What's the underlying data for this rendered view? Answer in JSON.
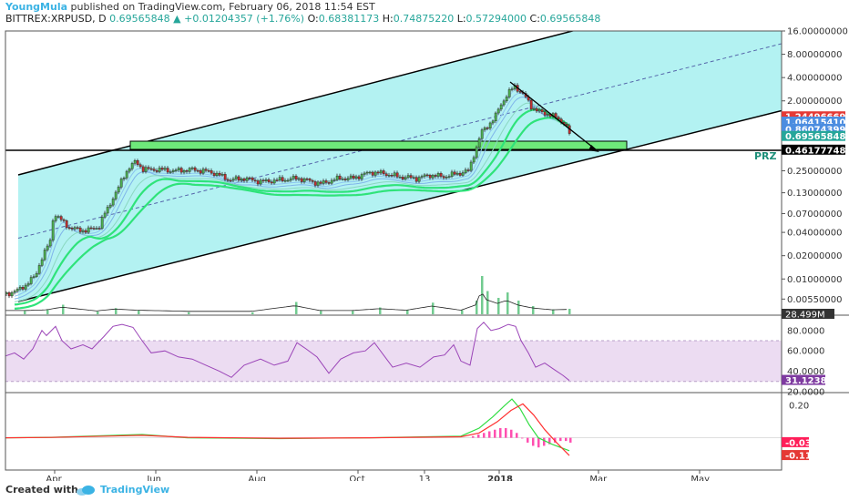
{
  "header": {
    "author": "YoungMula",
    "published_text": "published on TradingView.com, February 06, 2018 11:54 EST",
    "symbol": "BITTREX:XRPUSD, D",
    "last": "0.69565848",
    "change_arrow": "▲",
    "change": "+0.01204357 (+1.76%)",
    "o_label": "O:",
    "o_value": "0.68381173",
    "h_label": "H:",
    "h_value": "0.74875220",
    "l_label": "L:",
    "l_value": "0.57294000",
    "c_label": "C:",
    "c_value": "0.69565848"
  },
  "footer": {
    "created_with": "Created with",
    "brand": "TradingView"
  },
  "colors": {
    "channel_fill": "#a6f0f0",
    "prz_fill": "#6ee87a",
    "ma_green": "#2fe37a",
    "ma_blue": "#4c8de0",
    "up": "#4caf50",
    "down": "#c03030",
    "rsi": "#9b45b8",
    "rsi_band": "#ecdcf2",
    "macd_signal": "#ff3030",
    "macd_line": "#33dd44",
    "hist": "#ff4fb0"
  },
  "chart_data": [
    {
      "type": "candlestick",
      "title": "BITTREX:XRPUSD, D",
      "scale": "log",
      "ylim": [
        0.0035,
        16
      ],
      "x_ticks": [
        "Apr",
        "Jun",
        "Aug",
        "Oct",
        "13",
        "2018",
        "Mar",
        "May"
      ],
      "y_ticks": [
        "16.00000000",
        "8.00000000",
        "4.00000000",
        "2.00000000",
        "0.25000000",
        "0.13000000",
        "0.07000000",
        "0.04000000",
        "0.02000000",
        "0.01000000",
        "0.00550000"
      ],
      "price_labels": [
        {
          "text": "1.24496669",
          "color": "#e53935"
        },
        {
          "text": "1.06415410",
          "color": "#4c8de0"
        },
        {
          "text": "0.86074399",
          "color": "#4c8de0"
        },
        {
          "text": "0.69565848",
          "color": "#26a69a"
        },
        {
          "text": "0.46177748",
          "color": "#000000"
        }
      ],
      "annotation": "PRZ",
      "series": [
        {
          "t": 0,
          "v": 0.0064
        },
        {
          "t": 12,
          "v": 0.0071
        },
        {
          "t": 22,
          "v": 0.0085
        },
        {
          "t": 32,
          "v": 0.011
        },
        {
          "t": 42,
          "v": 0.022
        },
        {
          "t": 48,
          "v": 0.031
        },
        {
          "t": 52,
          "v": 0.07
        },
        {
          "t": 58,
          "v": 0.06
        },
        {
          "t": 70,
          "v": 0.045
        },
        {
          "t": 88,
          "v": 0.042
        },
        {
          "t": 102,
          "v": 0.048
        },
        {
          "t": 112,
          "v": 0.085
        },
        {
          "t": 122,
          "v": 0.14
        },
        {
          "t": 132,
          "v": 0.25
        },
        {
          "t": 142,
          "v": 0.33
        },
        {
          "t": 150,
          "v": 0.26
        },
        {
          "t": 165,
          "v": 0.26
        },
        {
          "t": 185,
          "v": 0.25
        },
        {
          "t": 205,
          "v": 0.26
        },
        {
          "t": 225,
          "v": 0.24
        },
        {
          "t": 245,
          "v": 0.19
        },
        {
          "t": 260,
          "v": 0.2
        },
        {
          "t": 280,
          "v": 0.18
        },
        {
          "t": 300,
          "v": 0.19
        },
        {
          "t": 320,
          "v": 0.2
        },
        {
          "t": 345,
          "v": 0.17
        },
        {
          "t": 365,
          "v": 0.2
        },
        {
          "t": 380,
          "v": 0.2
        },
        {
          "t": 400,
          "v": 0.24
        },
        {
          "t": 415,
          "v": 0.23
        },
        {
          "t": 430,
          "v": 0.21
        },
        {
          "t": 450,
          "v": 0.2
        },
        {
          "t": 465,
          "v": 0.22
        },
        {
          "t": 480,
          "v": 0.21
        },
        {
          "t": 495,
          "v": 0.23
        },
        {
          "t": 508,
          "v": 0.25
        },
        {
          "t": 516,
          "v": 0.5
        },
        {
          "t": 522,
          "v": 0.8
        },
        {
          "t": 528,
          "v": 0.95
        },
        {
          "t": 536,
          "v": 1.2
        },
        {
          "t": 544,
          "v": 1.9
        },
        {
          "t": 552,
          "v": 2.6
        },
        {
          "t": 558,
          "v": 3.1
        },
        {
          "t": 563,
          "v": 2.7
        },
        {
          "t": 570,
          "v": 2.2
        },
        {
          "t": 576,
          "v": 1.7
        },
        {
          "t": 582,
          "v": 1.5
        },
        {
          "t": 588,
          "v": 1.4
        },
        {
          "t": 596,
          "v": 1.35
        },
        {
          "t": 604,
          "v": 1.2
        },
        {
          "t": 612,
          "v": 1.05
        },
        {
          "t": 619,
          "v": 0.7
        }
      ]
    },
    {
      "type": "bar",
      "title": "Volume",
      "value_label": "28.499M",
      "series": [
        {
          "t": 20,
          "v": 0.25
        },
        {
          "t": 45,
          "v": 0.35
        },
        {
          "t": 62,
          "v": 0.7
        },
        {
          "t": 100,
          "v": 0.2
        },
        {
          "t": 120,
          "v": 0.45
        },
        {
          "t": 145,
          "v": 0.3
        },
        {
          "t": 200,
          "v": 0.15
        },
        {
          "t": 270,
          "v": 0.15
        },
        {
          "t": 318,
          "v": 0.9
        },
        {
          "t": 345,
          "v": 0.25
        },
        {
          "t": 380,
          "v": 0.25
        },
        {
          "t": 410,
          "v": 0.5
        },
        {
          "t": 440,
          "v": 0.3
        },
        {
          "t": 468,
          "v": 0.85
        },
        {
          "t": 500,
          "v": 0.3
        },
        {
          "t": 516,
          "v": 1.0
        },
        {
          "t": 522,
          "v": 2.8
        },
        {
          "t": 528,
          "v": 1.7
        },
        {
          "t": 540,
          "v": 1.2
        },
        {
          "t": 550,
          "v": 1.6
        },
        {
          "t": 562,
          "v": 1.0
        },
        {
          "t": 578,
          "v": 0.6
        },
        {
          "t": 600,
          "v": 0.35
        },
        {
          "t": 618,
          "v": 0.4
        }
      ]
    },
    {
      "type": "line",
      "title": "RSI",
      "ylim": [
        20,
        95
      ],
      "y_ticks": [
        "80.0000",
        "60.0000",
        "40.0000",
        "20.0000"
      ],
      "band": [
        30,
        70
      ],
      "value_label": "31.1238",
      "series": [
        {
          "t": 0,
          "v": 55
        },
        {
          "t": 10,
          "v": 58
        },
        {
          "t": 20,
          "v": 52
        },
        {
          "t": 30,
          "v": 62
        },
        {
          "t": 40,
          "v": 80
        },
        {
          "t": 45,
          "v": 75
        },
        {
          "t": 55,
          "v": 84
        },
        {
          "t": 62,
          "v": 70
        },
        {
          "t": 72,
          "v": 62
        },
        {
          "t": 85,
          "v": 66
        },
        {
          "t": 95,
          "v": 62
        },
        {
          "t": 108,
          "v": 74
        },
        {
          "t": 118,
          "v": 84
        },
        {
          "t": 128,
          "v": 86
        },
        {
          "t": 140,
          "v": 83
        },
        {
          "t": 150,
          "v": 70
        },
        {
          "t": 160,
          "v": 58
        },
        {
          "t": 175,
          "v": 60
        },
        {
          "t": 190,
          "v": 54
        },
        {
          "t": 205,
          "v": 52
        },
        {
          "t": 220,
          "v": 46
        },
        {
          "t": 235,
          "v": 40
        },
        {
          "t": 248,
          "v": 34
        },
        {
          "t": 262,
          "v": 46
        },
        {
          "t": 280,
          "v": 52
        },
        {
          "t": 295,
          "v": 46
        },
        {
          "t": 310,
          "v": 50
        },
        {
          "t": 320,
          "v": 68
        },
        {
          "t": 330,
          "v": 62
        },
        {
          "t": 342,
          "v": 54
        },
        {
          "t": 355,
          "v": 38
        },
        {
          "t": 368,
          "v": 52
        },
        {
          "t": 382,
          "v": 58
        },
        {
          "t": 395,
          "v": 60
        },
        {
          "t": 405,
          "v": 68
        },
        {
          "t": 415,
          "v": 56
        },
        {
          "t": 425,
          "v": 44
        },
        {
          "t": 440,
          "v": 48
        },
        {
          "t": 455,
          "v": 44
        },
        {
          "t": 470,
          "v": 54
        },
        {
          "t": 482,
          "v": 56
        },
        {
          "t": 492,
          "v": 66
        },
        {
          "t": 500,
          "v": 50
        },
        {
          "t": 510,
          "v": 46
        },
        {
          "t": 518,
          "v": 82
        },
        {
          "t": 525,
          "v": 88
        },
        {
          "t": 533,
          "v": 80
        },
        {
          "t": 542,
          "v": 82
        },
        {
          "t": 552,
          "v": 86
        },
        {
          "t": 560,
          "v": 84
        },
        {
          "t": 566,
          "v": 70
        },
        {
          "t": 574,
          "v": 58
        },
        {
          "t": 582,
          "v": 44
        },
        {
          "t": 592,
          "v": 48
        },
        {
          "t": 602,
          "v": 42
        },
        {
          "t": 612,
          "v": 36
        },
        {
          "t": 619,
          "v": 31
        }
      ]
    },
    {
      "type": "line",
      "title": "MACD",
      "ylim": [
        -0.2,
        0.28
      ],
      "y_ticks": [
        "0.20"
      ],
      "value_labels": [
        {
          "text": "-0.03",
          "color": "#ff1f5a"
        },
        {
          "text": "-0.11",
          "color": "#e53935"
        }
      ],
      "series": [
        {
          "name": "macd",
          "values": [
            {
              "t": 0,
              "v": 0
            },
            {
              "t": 50,
              "v": 0.003
            },
            {
              "t": 150,
              "v": 0.02
            },
            {
              "t": 200,
              "v": 0.0
            },
            {
              "t": 300,
              "v": -0.005
            },
            {
              "t": 400,
              "v": 0.0
            },
            {
              "t": 500,
              "v": 0.01
            },
            {
              "t": 520,
              "v": 0.06
            },
            {
              "t": 535,
              "v": 0.13
            },
            {
              "t": 548,
              "v": 0.2
            },
            {
              "t": 556,
              "v": 0.24
            },
            {
              "t": 565,
              "v": 0.18
            },
            {
              "t": 575,
              "v": 0.08
            },
            {
              "t": 585,
              "v": 0.0
            },
            {
              "t": 600,
              "v": -0.04
            },
            {
              "t": 619,
              "v": -0.08
            }
          ]
        },
        {
          "name": "signal",
          "values": [
            {
              "t": 0,
              "v": 0
            },
            {
              "t": 50,
              "v": 0.002
            },
            {
              "t": 150,
              "v": 0.015
            },
            {
              "t": 200,
              "v": 0.003
            },
            {
              "t": 300,
              "v": -0.003
            },
            {
              "t": 400,
              "v": 0.0
            },
            {
              "t": 500,
              "v": 0.006
            },
            {
              "t": 520,
              "v": 0.03
            },
            {
              "t": 540,
              "v": 0.1
            },
            {
              "t": 555,
              "v": 0.17
            },
            {
              "t": 568,
              "v": 0.21
            },
            {
              "t": 580,
              "v": 0.14
            },
            {
              "t": 592,
              "v": 0.05
            },
            {
              "t": 605,
              "v": -0.03
            },
            {
              "t": 619,
              "v": -0.11
            }
          ]
        },
        {
          "name": "histogram",
          "values": [
            {
              "t": 512,
              "v": 0.01
            },
            {
              "t": 518,
              "v": 0.02
            },
            {
              "t": 524,
              "v": 0.03
            },
            {
              "t": 530,
              "v": 0.04
            },
            {
              "t": 536,
              "v": 0.05
            },
            {
              "t": 542,
              "v": 0.06
            },
            {
              "t": 548,
              "v": 0.06
            },
            {
              "t": 554,
              "v": 0.05
            },
            {
              "t": 560,
              "v": 0.03
            },
            {
              "t": 566,
              "v": 0.0
            },
            {
              "t": 572,
              "v": -0.03
            },
            {
              "t": 578,
              "v": -0.05
            },
            {
              "t": 584,
              "v": -0.06
            },
            {
              "t": 590,
              "v": -0.05
            },
            {
              "t": 596,
              "v": -0.04
            },
            {
              "t": 602,
              "v": -0.03
            },
            {
              "t": 608,
              "v": -0.02
            },
            {
              "t": 614,
              "v": -0.02
            },
            {
              "t": 619,
              "v": -0.03
            }
          ]
        }
      ]
    }
  ]
}
